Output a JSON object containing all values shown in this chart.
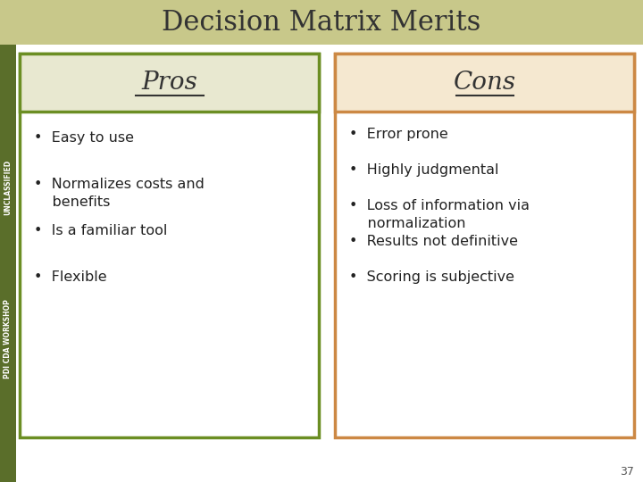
{
  "title": "Decision Matrix Merits",
  "title_fontsize": 22,
  "title_color": "#333333",
  "background_color": "#ffffff",
  "header_bar_color": "#c8c88a",
  "pros_header": "Pros",
  "cons_header": "Cons",
  "pros_border_color": "#6b8e23",
  "cons_border_color": "#cc8844",
  "header_bg_pros": "#e8e8d0",
  "header_bg_cons": "#f5e8d0",
  "pros_items": [
    "Easy to use",
    "Normalizes costs and\n    benefits",
    "Is a familiar tool",
    "Flexible"
  ],
  "cons_items": [
    "Error prone",
    "Highly judgmental",
    "Loss of information via\n    normalization",
    "Results not definitive",
    "Scoring is subjective"
  ],
  "side_label_unclassified": "UNCLASSIFIED",
  "side_label_workshop": "PDI CDA WORKSHOP",
  "slide_number": "37",
  "left_bar_color": "#5a6e2a",
  "bullet": "•"
}
